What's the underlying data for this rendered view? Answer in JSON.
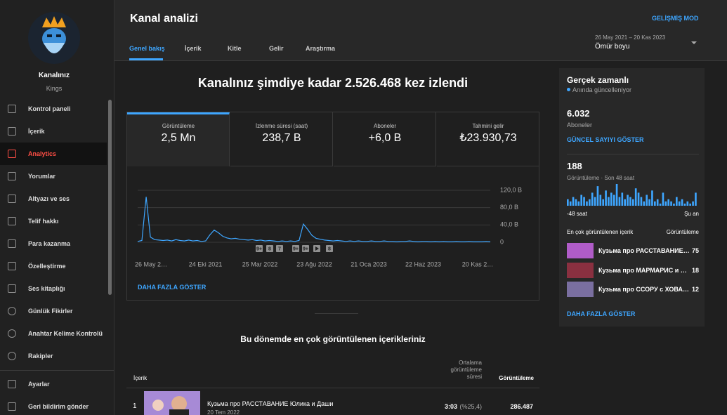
{
  "header": {
    "title": "Kanal analizi",
    "tabs": [
      "Genel bakış",
      "İçerik",
      "Kitle",
      "Gelir",
      "Araştırma"
    ],
    "selected_tab": 0,
    "advanced_mode": "GELİŞMİŞ MOD",
    "date_range": "26 May 2021 – 20 Kas 2023",
    "period": "Ömür boyu"
  },
  "sidebar": {
    "channel_label": "Kanalınız",
    "channel_name": "Kings",
    "active_item": 2,
    "items": [
      "Kontrol paneli",
      "İçerik",
      "Analytics",
      "Yorumlar",
      "Altyazı ve ses",
      "Telif hakkı",
      "Para kazanma",
      "Özelleştirme",
      "Ses kitaplığı",
      "Günlük Fikirler",
      "Anahtar Kelime Kontrolü",
      "Rakipler",
      "Ayarlar",
      "Geri bildirim gönder"
    ]
  },
  "overview": {
    "headline": "Kanalınız şimdiye kadar 2.526.468 kez izlendi",
    "selected_metric": 0,
    "metrics": [
      {
        "label": "Görüntüleme",
        "value": "2,5 Mn"
      },
      {
        "label": "İzlenme süresi (saat)",
        "value": "238,7 B"
      },
      {
        "label": "Aboneler",
        "value": "+6,0 B"
      },
      {
        "label": "Tahmini gelir",
        "value": "₺23.930,73"
      }
    ],
    "chart": {
      "type": "line",
      "color": "#3ea6ff",
      "xtick_labels": [
        "26 May 2…",
        "24 Eki 2021",
        "25 Mar 2022",
        "23 Ağu 2022",
        "21 Oca 2023",
        "22 Haz 2023",
        "20 Kas 2…"
      ],
      "ylim": [
        0,
        120000
      ],
      "yticks": [
        {
          "value": 0,
          "label": "0"
        },
        {
          "value": 40000,
          "label": "40,0 B"
        },
        {
          "value": 80000,
          "label": "80,0 B"
        },
        {
          "value": 120000,
          "label": "120,0 B"
        }
      ],
      "annotations": [
        "9+",
        "8",
        "7",
        "9+",
        "9+",
        "8"
      ],
      "values": [
        2000,
        4000,
        105000,
        12000,
        6000,
        5000,
        4000,
        5000,
        3000,
        6000,
        4000,
        3000,
        5000,
        3000,
        4000,
        2000,
        3000,
        17000,
        28000,
        22000,
        14000,
        10000,
        8000,
        9000,
        7000,
        6000,
        5000,
        6000,
        4000,
        5000,
        3000,
        4000,
        3000,
        2000,
        3000,
        2000,
        3000,
        2000,
        4000,
        42000,
        30000,
        16000,
        9000,
        7000,
        5000,
        4000,
        3000,
        4000,
        3000,
        2000,
        3000,
        2000,
        3000,
        2000,
        2000,
        3000,
        2000,
        2000,
        3000,
        2000,
        2000,
        1000,
        2000,
        2000,
        3000,
        2000,
        1000,
        2000,
        2000,
        1000,
        2000,
        1000,
        2000,
        1000,
        1000,
        2000,
        1000,
        1000,
        2000,
        1000,
        1000,
        1000,
        2000,
        1000
      ]
    },
    "show_more": "DAHA FAZLA GÖSTER"
  },
  "top_content": {
    "title": "Bu dönemde en çok görüntülenen içerikleriniz",
    "columns": [
      "İçerik",
      "Ortalama görüntüleme süresi",
      "Görüntüleme"
    ],
    "rows": [
      {
        "rank": 1,
        "title": "Кузьма про РАССТАВАНИЕ Юлика и Даши",
        "date": "20 Tem 2022",
        "avg_duration": "3:03",
        "avg_percent": "(%25,4)",
        "views": "286.487"
      }
    ]
  },
  "realtime": {
    "title": "Gerçek zamanlı",
    "status": "Anında güncelleniyor",
    "subscribers": "6.032",
    "subscribers_label": "Aboneler",
    "show_count": "GÜNCEL SAYIYI GÖSTER",
    "views": "188",
    "views_label": "Görüntüleme · Son 48 saat",
    "chart": {
      "type": "bar",
      "color": "#3ea6ff",
      "values": [
        3,
        2,
        4,
        3,
        2,
        5,
        4,
        2,
        3,
        6,
        4,
        9,
        5,
        3,
        7,
        4,
        6,
        5,
        10,
        4,
        6,
        3,
        5,
        4,
        3,
        8,
        6,
        4,
        2,
        5,
        3,
        7,
        2,
        3,
        1,
        6,
        2,
        3,
        2,
        1,
        4,
        2,
        3,
        1,
        2,
        1,
        2,
        6
      ],
      "x_start": "-48 saat",
      "x_end": "Şu an"
    },
    "top_label": "En çok görüntülenen içerik",
    "top_value_label": "Görüntüleme",
    "top_items": [
      {
        "title": "Кузьма про РАССТАВАНИЕ…",
        "views": 75
      },
      {
        "title": "Кузьма про МАРМАРИС и …",
        "views": 18
      },
      {
        "title": "Кузьма про ССОРУ с ХОВА…",
        "views": 12
      }
    ],
    "show_more": "DAHA FAZLA GÖSTER"
  }
}
